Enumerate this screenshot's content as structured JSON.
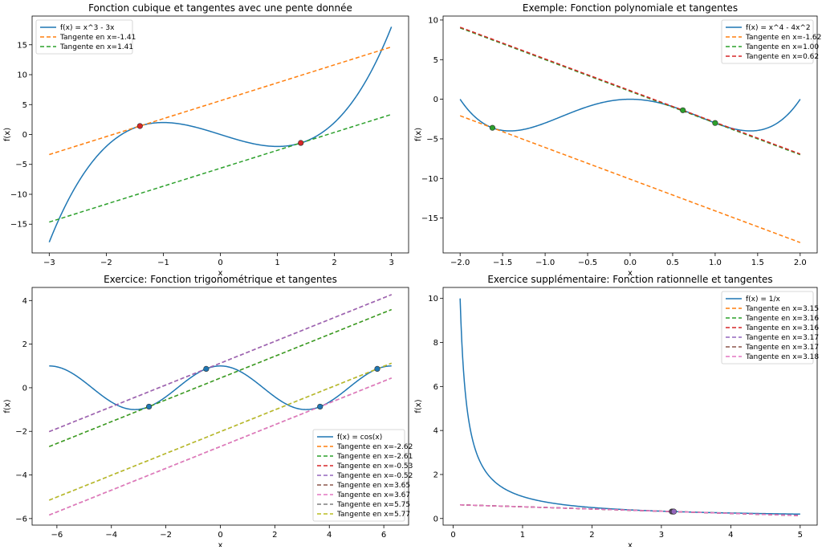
{
  "figure_title": "",
  "colors": {
    "blue": "#1f77b4",
    "orange": "#ff7f0e",
    "green": "#2ca02c",
    "red": "#d62728",
    "purple": "#9467bd",
    "brown": "#8c564b",
    "pink": "#e377c2",
    "gray": "#7f7f7f",
    "olive": "#bcbd22"
  },
  "chart_data": [
    {
      "type": "line",
      "title": "Fonction cubique et tangentes avec une pente donnée",
      "xlabel": "x",
      "ylabel": "f(x)",
      "xlim": [
        -3.3,
        3.3
      ],
      "ylim": [
        -19.8,
        19.8
      ],
      "xticks": [
        -3,
        -2,
        -1,
        0,
        1,
        2,
        3
      ],
      "xtick_labels": [
        "−3",
        "−2",
        "−1",
        "0",
        "1",
        "2",
        "3"
      ],
      "yticks": [
        -15,
        -10,
        -5,
        0,
        5,
        10,
        15
      ],
      "ytick_labels": [
        "−15",
        "−10",
        "−5",
        "0",
        "5",
        "10",
        "15"
      ],
      "legend_position": "upper-left",
      "function": {
        "name": "f(x) = x^3 - 3x",
        "expr": "cubic",
        "x_range": [
          -3,
          3
        ],
        "color": "blue"
      },
      "tangents": [
        {
          "name": "Tangente en x=-1.41",
          "x0": -1.41,
          "y0": 1.414,
          "slope": 3,
          "x_range": [
            -3,
            3
          ],
          "color": "orange"
        },
        {
          "name": "Tangente en x=1.41",
          "x0": 1.41,
          "y0": -1.414,
          "slope": 3,
          "x_range": [
            -3,
            3
          ],
          "color": "green"
        }
      ],
      "points": [
        {
          "x": -1.41,
          "y": 1.414,
          "color": "red"
        },
        {
          "x": 1.41,
          "y": -1.414,
          "color": "red"
        }
      ]
    },
    {
      "type": "line",
      "title": "Exemple: Fonction polynomiale et tangentes",
      "xlabel": "x",
      "ylabel": "f(x)",
      "xlim": [
        -2.2,
        2.2
      ],
      "ylim": [
        -19.4,
        10.5
      ],
      "xticks": [
        -2.0,
        -1.5,
        -1.0,
        -0.5,
        0.0,
        0.5,
        1.0,
        1.5,
        2.0
      ],
      "xtick_labels": [
        "−2.0",
        "−1.5",
        "−1.0",
        "−0.5",
        "0.0",
        "0.5",
        "1.0",
        "1.5",
        "2.0"
      ],
      "yticks": [
        -15,
        -10,
        -5,
        0,
        5,
        10
      ],
      "ytick_labels": [
        "−15",
        "−10",
        "−5",
        "0",
        "5",
        "10"
      ],
      "legend_position": "upper-right",
      "function": {
        "name": "f(x) = x^4 - 4x^2",
        "expr": "quartic",
        "x_range": [
          -2,
          2
        ],
        "color": "blue"
      },
      "tangents": [
        {
          "name": "Tangente en x=-1.62",
          "x0": -1.62,
          "y0": -3.61,
          "slope": -4,
          "x_range": [
            -2,
            2
          ],
          "color": "orange"
        },
        {
          "name": "Tangente en x=1.00",
          "x0": 1.0,
          "y0": -3.0,
          "slope": -4,
          "x_range": [
            -2,
            2
          ],
          "color": "green"
        },
        {
          "name": "Tangente en x=0.62",
          "x0": 0.62,
          "y0": -1.39,
          "slope": -4,
          "x_range": [
            -2,
            2
          ],
          "color": "red"
        }
      ],
      "points": [
        {
          "x": -1.62,
          "y": -3.61,
          "color": "green"
        },
        {
          "x": 1.0,
          "y": -3.0,
          "color": "green"
        },
        {
          "x": 0.62,
          "y": -1.39,
          "color": "green"
        }
      ]
    },
    {
      "type": "line",
      "title": "Exercice: Fonction trigonométrique et tangentes",
      "xlabel": "x",
      "ylabel": "f(x)",
      "xlim": [
        -6.91,
        6.91
      ],
      "ylim": [
        -6.3,
        4.6
      ],
      "xticks": [
        -6,
        -4,
        -2,
        0,
        2,
        4,
        6
      ],
      "xtick_labels": [
        "−6",
        "−4",
        "−2",
        "0",
        "2",
        "4",
        "6"
      ],
      "yticks": [
        -6,
        -4,
        -2,
        0,
        2,
        4
      ],
      "ytick_labels": [
        "−6",
        "−4",
        "−2",
        "0",
        "2",
        "4"
      ],
      "legend_position": "lower-right",
      "function": {
        "name": "f(x) = cos(x)",
        "expr": "cos",
        "x_range": [
          -6.283,
          6.283
        ],
        "color": "blue"
      },
      "tangents": [
        {
          "name": "Tangente en x=-2.62",
          "x0": -2.62,
          "y0": -0.866,
          "slope": 0.5,
          "x_range": [
            -6.283,
            6.283
          ],
          "color": "orange"
        },
        {
          "name": "Tangente en x=-2.61",
          "x0": -2.61,
          "y0": -0.861,
          "slope": 0.5,
          "x_range": [
            -6.283,
            6.283
          ],
          "color": "green"
        },
        {
          "name": "Tangente en x=-0.53",
          "x0": -0.53,
          "y0": 0.863,
          "slope": 0.5,
          "x_range": [
            -6.283,
            6.283
          ],
          "color": "red"
        },
        {
          "name": "Tangente en x=-0.52",
          "x0": -0.52,
          "y0": 0.868,
          "slope": 0.5,
          "x_range": [
            -6.283,
            6.283
          ],
          "color": "purple"
        },
        {
          "name": "Tangente en x=3.65",
          "x0": 3.65,
          "y0": -0.872,
          "slope": 0.5,
          "x_range": [
            -6.283,
            6.283
          ],
          "color": "brown"
        },
        {
          "name": "Tangente en x=3.67",
          "x0": 3.67,
          "y0": -0.862,
          "slope": 0.5,
          "x_range": [
            -6.283,
            6.283
          ],
          "color": "pink"
        },
        {
          "name": "Tangente en x=5.75",
          "x0": 5.75,
          "y0": 0.861,
          "slope": 0.5,
          "x_range": [
            -6.283,
            6.283
          ],
          "color": "gray"
        },
        {
          "name": "Tangente en x=5.77",
          "x0": 5.77,
          "y0": 0.871,
          "slope": 0.5,
          "x_range": [
            -6.283,
            6.283
          ],
          "color": "olive"
        }
      ],
      "points": [
        {
          "x": -2.62,
          "y": -0.866,
          "color": "blue"
        },
        {
          "x": -0.52,
          "y": 0.866,
          "color": "blue"
        },
        {
          "x": 3.66,
          "y": -0.866,
          "color": "blue"
        },
        {
          "x": 5.76,
          "y": 0.866,
          "color": "blue"
        }
      ]
    },
    {
      "type": "line",
      "title": "Exercice supplémentaire: Fonction rationnelle et tangentes",
      "xlabel": "x",
      "ylabel": "f(x)",
      "xlim": [
        -0.145,
        5.245
      ],
      "ylim": [
        -0.3,
        10.5
      ],
      "xticks": [
        0,
        1,
        2,
        3,
        4,
        5
      ],
      "xtick_labels": [
        "0",
        "1",
        "2",
        "3",
        "4",
        "5"
      ],
      "yticks": [
        0,
        2,
        4,
        6,
        8,
        10
      ],
      "ytick_labels": [
        "0",
        "2",
        "4",
        "6",
        "8",
        "10"
      ],
      "legend_position": "upper-right",
      "function": {
        "name": "f(x) = 1/x",
        "expr": "reciprocal",
        "x_range": [
          0.1,
          5
        ],
        "color": "blue"
      },
      "tangents": [
        {
          "name": "Tangente en x=3.15",
          "x0": 3.15,
          "y0": 0.3175,
          "slope": -0.1,
          "x_range": [
            0.1,
            5
          ],
          "color": "orange"
        },
        {
          "name": "Tangente en x=3.16",
          "x0": 3.16,
          "y0": 0.3165,
          "slope": -0.1,
          "x_range": [
            0.1,
            5
          ],
          "color": "green"
        },
        {
          "name": "Tangente en x=3.16",
          "x0": 3.16,
          "y0": 0.3162,
          "slope": -0.1,
          "x_range": [
            0.1,
            5
          ],
          "color": "red"
        },
        {
          "name": "Tangente en x=3.17",
          "x0": 3.17,
          "y0": 0.3155,
          "slope": -0.1,
          "x_range": [
            0.1,
            5
          ],
          "color": "purple"
        },
        {
          "name": "Tangente en x=3.17",
          "x0": 3.17,
          "y0": 0.315,
          "slope": -0.1,
          "x_range": [
            0.1,
            5
          ],
          "color": "brown"
        },
        {
          "name": "Tangente en x=3.18",
          "x0": 3.18,
          "y0": 0.3145,
          "slope": -0.1,
          "x_range": [
            0.1,
            5
          ],
          "color": "pink"
        }
      ],
      "points": [
        {
          "x": 3.15,
          "y": 0.3175,
          "color": "purple"
        },
        {
          "x": 3.16,
          "y": 0.3165,
          "color": "purple"
        },
        {
          "x": 3.17,
          "y": 0.3155,
          "color": "purple"
        },
        {
          "x": 3.18,
          "y": 0.3145,
          "color": "purple"
        }
      ]
    }
  ]
}
